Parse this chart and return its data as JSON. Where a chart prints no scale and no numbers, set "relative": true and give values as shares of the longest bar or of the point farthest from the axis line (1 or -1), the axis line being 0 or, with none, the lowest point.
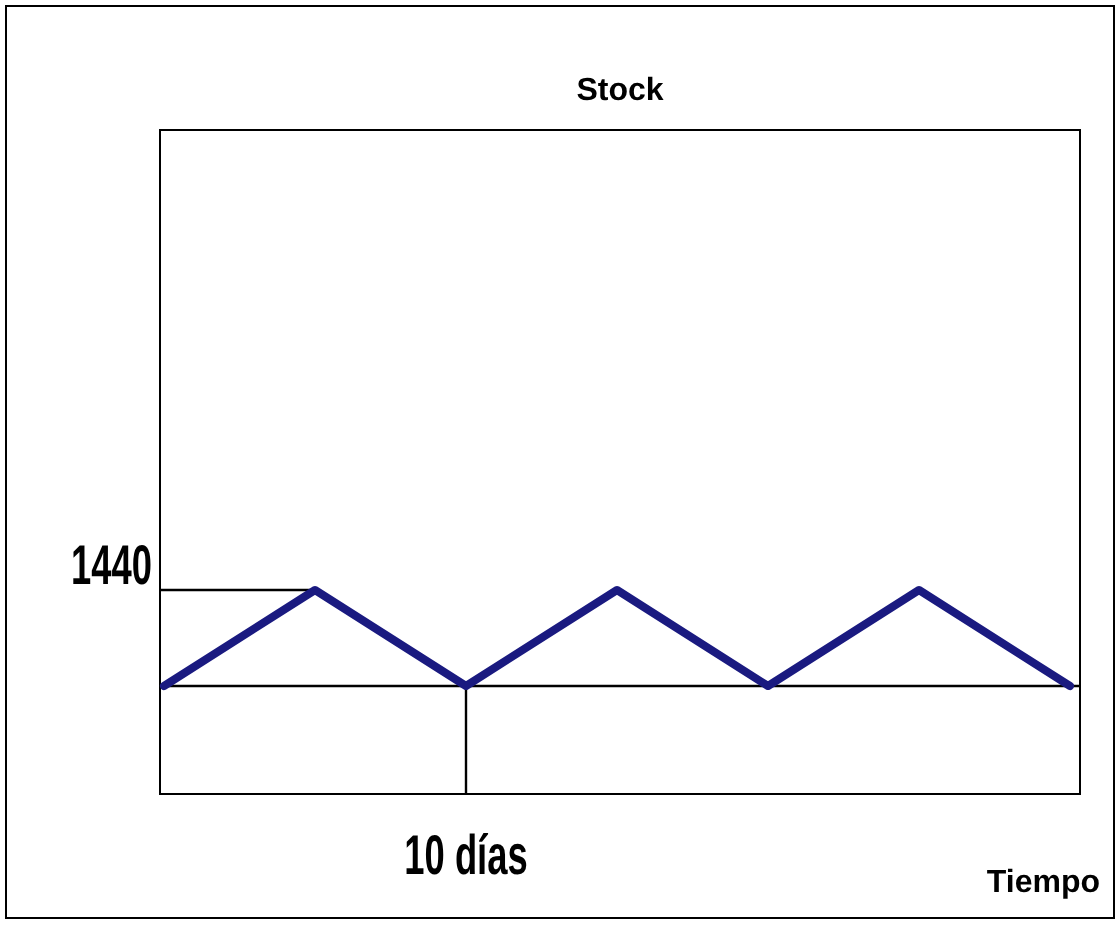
{
  "chart_data": {
    "type": "line",
    "title": "Stock",
    "relative": true,
    "categories": [
      null,
      null,
      null,
      null,
      null,
      null,
      null
    ],
    "series": [
      {
        "color": "#1a1a80",
        "values": [
          0,
          1,
          0,
          1,
          0,
          1,
          0
        ]
      }
    ],
    "annotations": [
      "1440",
      "10 días",
      "Tiempo"
    ],
    "marker": "none",
    "line_style": "solid"
  }
}
